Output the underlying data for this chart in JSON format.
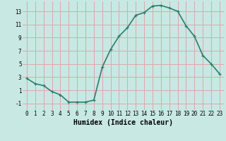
{
  "x": [
    0,
    1,
    2,
    3,
    4,
    5,
    6,
    7,
    8,
    9,
    10,
    11,
    12,
    13,
    14,
    15,
    16,
    17,
    18,
    19,
    20,
    21,
    22,
    23
  ],
  "y": [
    2.8,
    2.0,
    1.7,
    0.8,
    0.3,
    -0.8,
    -0.8,
    -0.8,
    -0.5,
    4.5,
    7.2,
    9.2,
    10.5,
    12.4,
    12.8,
    13.8,
    13.9,
    13.5,
    13.0,
    10.8,
    9.2,
    6.3,
    5.0,
    3.5
  ],
  "line_color": "#2e7d6e",
  "marker": "+",
  "marker_size": 3,
  "linewidth": 1.2,
  "xlabel": "Humidex (Indice chaleur)",
  "xlabel_fontsize": 7,
  "xlim": [
    -0.5,
    23.5
  ],
  "ylim": [
    -2,
    14.5
  ],
  "yticks": [
    -1,
    1,
    3,
    5,
    7,
    9,
    11,
    13
  ],
  "xticks": [
    0,
    1,
    2,
    3,
    4,
    5,
    6,
    7,
    8,
    9,
    10,
    11,
    12,
    13,
    14,
    15,
    16,
    17,
    18,
    19,
    20,
    21,
    22,
    23
  ],
  "bg_color": "#c8e8e4",
  "grid_color": "#dda8a8",
  "tick_fontsize": 5.5
}
